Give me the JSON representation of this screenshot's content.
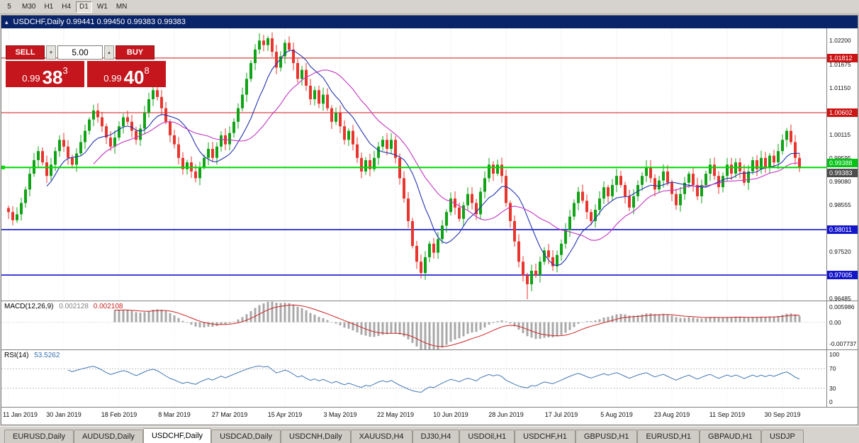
{
  "toolbar": {
    "timeframes": [
      "5",
      "M30",
      "H1",
      "H4",
      "D1",
      "W1",
      "MN"
    ],
    "active": "D1"
  },
  "title_bar": {
    "title": "USDCHF,Daily 0.99441 0.99450 0.99383 0.99383"
  },
  "icons": {
    "collapse": "▴",
    "spin_up": "▴",
    "spin_down": "▾"
  },
  "trade_panel": {
    "sell_label": "SELL",
    "buy_label": "BUY",
    "volume": "5.00",
    "sell_price_small": "0.99",
    "sell_price_big": "38",
    "sell_price_sup": "3",
    "buy_price_small": "0.99",
    "buy_price_big": "40",
    "buy_price_sup": "8"
  },
  "indicators": {
    "macd": {
      "name": "MACD(12,26,9)",
      "value1": "0.002128",
      "value2": "0.002108",
      "axis": [
        {
          "text": "0.005986",
          "v": 0.005986
        },
        {
          "text": "0.00",
          "v": 0
        },
        {
          "text": "-0.007737",
          "v": -0.007737
        }
      ],
      "range": [
        -0.0078,
        0.006
      ],
      "histogram_color": "#a8a8a8",
      "signal_color": "#cc2222"
    },
    "rsi": {
      "name": "RSI(14)",
      "value": "53.5262",
      "axis": [
        {
          "text": "100",
          "v": 100
        },
        {
          "text": "70",
          "v": 70
        },
        {
          "text": "30",
          "v": 30
        },
        {
          "text": "0",
          "v": 0
        }
      ],
      "levels": [
        70,
        30
      ],
      "line_color": "#4076b4"
    }
  },
  "price_axis": {
    "ticks": [
      "1.02200",
      "1.01675",
      "1.01150",
      "1.00115",
      "0.99595",
      "0.99080",
      "0.98555",
      "0.97520",
      "0.96485"
    ],
    "badges": [
      {
        "text": "1.01812",
        "price": 1.01812,
        "bg": "#cc1414",
        "align": "center",
        "type": "line"
      },
      {
        "text": "1.00602",
        "price": 1.00602,
        "bg": "#cc1414",
        "align": "center",
        "type": "line"
      },
      {
        "text": "0.99388",
        "price": 0.99388,
        "bg": "#00c414",
        "align": "above",
        "type": "line"
      },
      {
        "text": "0.99383",
        "price": 0.99383,
        "bg": "#4d4d4d",
        "align": "below",
        "type": "bid"
      },
      {
        "text": "0.98011",
        "price": 0.98011,
        "bg": "#1515cc",
        "align": "center",
        "type": "line"
      },
      {
        "text": "0.97005",
        "price": 0.97005,
        "bg": "#1515cc",
        "align": "center",
        "type": "line"
      }
    ]
  },
  "time_axis": {
    "labels": [
      "11 Jan 2019",
      "30 Jan 2019",
      "18 Feb 2019",
      "8 Mar 2019",
      "27 Mar 2019",
      "15 Apr 2019",
      "3 May 2019",
      "22 May 2019",
      "10 Jun 2019",
      "28 Jun 2019",
      "17 Jul 2019",
      "5 Aug 2019",
      "23 Aug 2019",
      "11 Sep 2019",
      "30 Sep 2019"
    ],
    "candles_per_tick": 13
  },
  "chart_data": {
    "type": "candlestick",
    "symbol": "USDCHF",
    "timeframe": "Daily",
    "y_range": [
      0.9644,
      1.0247
    ],
    "up_color": "#0fa315",
    "down_color": "#e8352e",
    "ma_fast": {
      "period": 10,
      "color": "#2233b0"
    },
    "ma_slow": {
      "period": 21,
      "color": "#c233c2"
    },
    "hlines": [
      {
        "price": 1.01812,
        "color": "#cc1414",
        "width": 1,
        "front": false
      },
      {
        "price": 1.00602,
        "color": "#cc1414",
        "width": 1,
        "front": false
      },
      {
        "price": 0.99388,
        "color": "#00d800",
        "width": 2,
        "front": true
      },
      {
        "price": 0.98011,
        "color": "#1515cc",
        "width": 1.6,
        "front": false
      },
      {
        "price": 0.97005,
        "color": "#1515cc",
        "width": 1.6,
        "front": false
      }
    ],
    "closes": [
      0.984,
      0.9822,
      0.9835,
      0.986,
      0.989,
      0.9925,
      0.9955,
      0.9975,
      0.995,
      0.992,
      0.9945,
      0.9975,
      1.0,
      0.9985,
      0.996,
      0.9945,
      0.997,
      0.9995,
      1.002,
      1.0045,
      1.0065,
      1.005,
      1.003,
      1.0005,
      0.9985,
      1.0005,
      1.003,
      1.005,
      1.004,
      1.002,
      1.0,
      1.0025,
      1.006,
      1.009,
      1.011,
      1.0095,
      1.007,
      1.004,
      1.001,
      0.999,
      0.996,
      0.9935,
      0.995,
      0.993,
      0.9915,
      0.994,
      0.996,
      0.998,
      0.996,
      0.9985,
      1.001,
      0.999,
      1.0015,
      1.004,
      1.007,
      1.01,
      1.0135,
      1.017,
      1.02,
      1.022,
      1.021,
      1.0225,
      1.0195,
      1.016,
      1.0185,
      1.0215,
      1.02,
      1.017,
      1.0135,
      1.0155,
      1.012,
      1.009,
      1.011,
      1.008,
      1.01,
      1.007,
      1.004,
      1.006,
      1.003,
      1.0,
      1.002,
      0.999,
      0.996,
      0.993,
      0.9955,
      0.9935,
      0.996,
      0.9985,
      1.0,
      0.998,
      1.0,
      0.996,
      0.9915,
      0.987,
      0.982,
      0.9765,
      0.973,
      0.9705,
      0.974,
      0.977,
      0.975,
      0.978,
      0.981,
      0.984,
      0.987,
      0.985,
      0.9825,
      0.9855,
      0.988,
      0.986,
      0.9835,
      0.9885,
      0.9915,
      0.9945,
      0.9925,
      0.9945,
      0.992,
      0.986,
      0.982,
      0.9775,
      0.973,
      0.97,
      0.968,
      0.971,
      0.97,
      0.973,
      0.9755,
      0.974,
      0.972,
      0.9745,
      0.977,
      0.98,
      0.983,
      0.986,
      0.9885,
      0.9865,
      0.984,
      0.982,
      0.9845,
      0.987,
      0.9895,
      0.9875,
      0.99,
      0.992,
      0.99,
      0.9875,
      0.985,
      0.9875,
      0.99,
      0.992,
      0.994,
      0.9915,
      0.989,
      0.991,
      0.993,
      0.9905,
      0.988,
      0.9855,
      0.988,
      0.9905,
      0.9925,
      0.99,
      0.9875,
      0.99,
      0.9925,
      0.9945,
      0.992,
      0.9895,
      0.992,
      0.9945,
      0.9925,
      0.995,
      0.993,
      0.9905,
      0.993,
      0.9955,
      0.9935,
      0.996,
      0.994,
      0.9965,
      0.995,
      0.9975,
      1.0,
      1.002,
      0.9995,
      0.996,
      0.9938
    ],
    "low_overrides": {
      "2": 0.9816,
      "97": 0.9693,
      "122": 0.9647
    }
  },
  "tabs": {
    "items": [
      "EURUSD,Daily",
      "AUDUSD,Daily",
      "USDCHF,Daily",
      "USDCAD,Daily",
      "USDCNH,Daily",
      "XAUUSD,H4",
      "DJ30,H4",
      "USDOil,H1",
      "USDCHF,H1",
      "GBPUSD,H1",
      "EURUSD,H1",
      "GBPAUD,H1",
      "USDJP"
    ],
    "active_index": 2
  }
}
